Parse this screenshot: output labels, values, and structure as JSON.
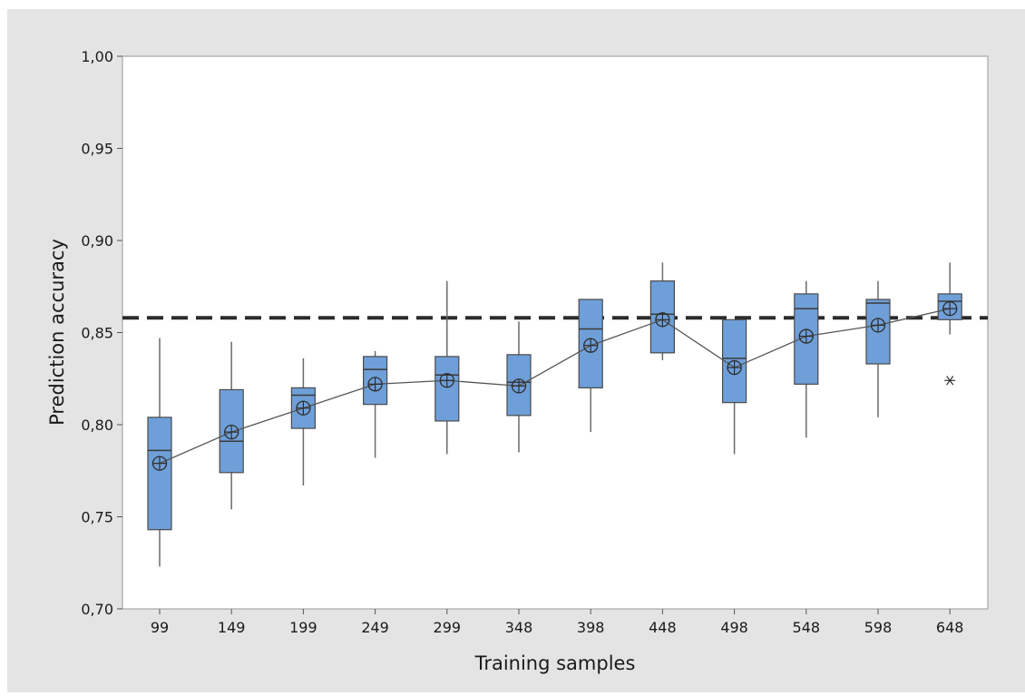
{
  "chart_data": {
    "type": "box",
    "xlabel": "Training samples",
    "ylabel": "Prediction accuracy",
    "ylim": [
      0.7,
      1.0
    ],
    "yticks": [
      "0,70",
      "0,75",
      "0,80",
      "0,85",
      "0,90",
      "0,95",
      "1,00"
    ],
    "ytick_values": [
      0.7,
      0.75,
      0.8,
      0.85,
      0.9,
      0.95,
      1.0
    ],
    "categories": [
      "99",
      "149",
      "199",
      "249",
      "299",
      "348",
      "398",
      "448",
      "498",
      "548",
      "598",
      "648"
    ],
    "boxes": [
      {
        "whisker_low": 0.723,
        "q1": 0.743,
        "median": 0.786,
        "q3": 0.804,
        "whisker_high": 0.847,
        "mean": 0.779
      },
      {
        "whisker_low": 0.754,
        "q1": 0.774,
        "median": 0.791,
        "q3": 0.819,
        "whisker_high": 0.845,
        "mean": 0.796
      },
      {
        "whisker_low": 0.767,
        "q1": 0.798,
        "median": 0.816,
        "q3": 0.82,
        "whisker_high": 0.836,
        "mean": 0.809
      },
      {
        "whisker_low": 0.782,
        "q1": 0.811,
        "median": 0.83,
        "q3": 0.837,
        "whisker_high": 0.84,
        "mean": 0.822
      },
      {
        "whisker_low": 0.784,
        "q1": 0.802,
        "median": 0.827,
        "q3": 0.837,
        "whisker_high": 0.878,
        "mean": 0.824
      },
      {
        "whisker_low": 0.785,
        "q1": 0.805,
        "median": 0.823,
        "q3": 0.838,
        "whisker_high": 0.856,
        "mean": 0.821
      },
      {
        "whisker_low": 0.796,
        "q1": 0.82,
        "median": 0.852,
        "q3": 0.868,
        "whisker_high": 0.868,
        "mean": 0.843
      },
      {
        "whisker_low": 0.835,
        "q1": 0.839,
        "median": 0.86,
        "q3": 0.878,
        "whisker_high": 0.888,
        "mean": 0.857
      },
      {
        "whisker_low": 0.784,
        "q1": 0.812,
        "median": 0.836,
        "q3": 0.857,
        "whisker_high": 0.857,
        "mean": 0.831
      },
      {
        "whisker_low": 0.793,
        "q1": 0.822,
        "median": 0.863,
        "q3": 0.871,
        "whisker_high": 0.878,
        "mean": 0.848
      },
      {
        "whisker_low": 0.804,
        "q1": 0.833,
        "median": 0.866,
        "q3": 0.868,
        "whisker_high": 0.878,
        "mean": 0.854
      },
      {
        "whisker_low": 0.849,
        "q1": 0.857,
        "median": 0.867,
        "q3": 0.871,
        "whisker_high": 0.888,
        "mean": 0.863,
        "outliers": [
          0.824
        ]
      }
    ],
    "reference_line": {
      "y": 0.858,
      "style": "dashed"
    },
    "mean_connect_line": true,
    "grid": false,
    "legend": "none",
    "colors": {
      "box_fill": "#6f9fd8",
      "box_stroke": "#4a4a4a",
      "background": "#e4e4e4",
      "plot_background": "#ffffff",
      "reference_line": "#2b2b2b"
    }
  }
}
